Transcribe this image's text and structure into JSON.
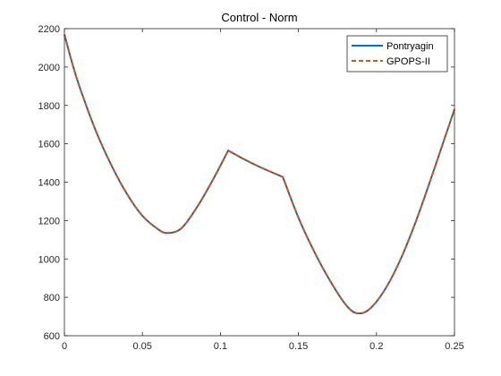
{
  "chart_data": {
    "type": "line",
    "title": "Control - Norm",
    "xlabel": "",
    "ylabel": "",
    "xlim": [
      0,
      0.25
    ],
    "ylim": [
      600,
      2200
    ],
    "x_ticks": [
      0,
      0.05,
      0.1,
      0.15,
      0.2,
      0.25
    ],
    "x_tick_labels": [
      "0",
      "0.05",
      "0.1",
      "0.15",
      "0.2",
      "0.25"
    ],
    "y_ticks": [
      600,
      800,
      1000,
      1200,
      1400,
      1600,
      1800,
      2000,
      2200
    ],
    "y_tick_labels": [
      "600",
      "800",
      "1000",
      "1200",
      "1400",
      "1600",
      "1800",
      "2000",
      "2200"
    ],
    "grid": false,
    "legend_position": "top-right",
    "x": [
      0,
      0.005,
      0.01,
      0.02,
      0.03,
      0.04,
      0.05,
      0.06,
      0.066,
      0.075,
      0.085,
      0.095,
      0.105,
      0.115,
      0.125,
      0.14,
      0.15,
      0.16,
      0.17,
      0.18,
      0.187,
      0.195,
      0.205,
      0.215,
      0.225,
      0.235,
      0.245,
      0.25
    ],
    "series": [
      {
        "name": "Pontryagin",
        "color": "#0072BD",
        "style": "solid",
        "values": [
          2170,
          2020,
          1890,
          1670,
          1490,
          1340,
          1225,
          1155,
          1135,
          1160,
          1270,
          1410,
          1565,
          1520,
          1480,
          1427,
          1215,
          1040,
          890,
          765,
          718,
          735,
          835,
          990,
          1190,
          1420,
          1660,
          1780
        ]
      },
      {
        "name": "GPOPS-II",
        "color": "#D95319",
        "style": "dashed",
        "values": [
          2170,
          2020,
          1890,
          1670,
          1490,
          1340,
          1225,
          1155,
          1135,
          1160,
          1270,
          1410,
          1565,
          1520,
          1480,
          1427,
          1215,
          1040,
          890,
          765,
          718,
          735,
          835,
          990,
          1190,
          1420,
          1660,
          1780
        ]
      }
    ]
  }
}
